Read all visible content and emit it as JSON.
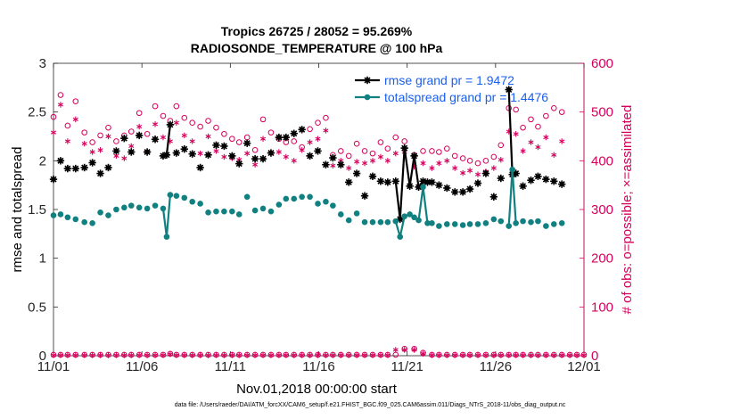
{
  "chart_data": {
    "type": "line",
    "title": "Tropics 26725 / 28052 = 95.269%",
    "subtitle": "RADIOSONDE_TEMPERATURE @ 100 hPa",
    "xlabel": "Nov.01,2018 00:00:00 start",
    "ylabel": "rmse and totalspread",
    "y2label": "# of obs: o=possible; ×=assimilated",
    "xlim": [
      0,
      30
    ],
    "ylim": [
      0,
      3
    ],
    "y2lim": [
      0,
      600
    ],
    "x_ticks": [
      0,
      5,
      10,
      15,
      20,
      25,
      30
    ],
    "x_tick_labels": [
      "11/01",
      "11/06",
      "11/11",
      "11/16",
      "11/21",
      "11/26",
      "12/01"
    ],
    "y_ticks": [
      0,
      0.5,
      1,
      1.5,
      2,
      2.5,
      3
    ],
    "y_tick_labels": [
      "0",
      "0.5",
      "1",
      "1.5",
      "2",
      "2.5",
      "3"
    ],
    "y2_ticks": [
      0,
      100,
      200,
      300,
      400,
      500,
      600
    ],
    "y2_tick_labels": [
      "0",
      "100",
      "200",
      "300",
      "400",
      "500",
      "600"
    ],
    "colors": {
      "rmse": "#000000",
      "spread": "#118080",
      "obs": "#d6005c"
    },
    "legend": [
      {
        "name": "rmse grand pr = 1.9472",
        "color": "#000000"
      },
      {
        "name": "totalspread grand pr = 1.4476",
        "color": "#118080"
      }
    ],
    "series": [
      {
        "name": "rmse",
        "axis": "left",
        "color": "#000000",
        "x": [
          0.0,
          0.4,
          0.8,
          1.25,
          1.75,
          2.2,
          2.65,
          3.1,
          3.55,
          4.0,
          4.4,
          4.85,
          5.3,
          5.75,
          6.2,
          6.4,
          6.6,
          6.95,
          7.4,
          7.85,
          8.3,
          8.75,
          9.2,
          9.65,
          10.1,
          10.5,
          10.95,
          11.4,
          11.85,
          12.3,
          12.75,
          13.15,
          13.6,
          14.05,
          14.5,
          14.95,
          15.4,
          15.8,
          16.25,
          16.7,
          17.15,
          17.6,
          18.05,
          18.5,
          18.9,
          19.35,
          19.6,
          19.85,
          20.15,
          20.4,
          20.65,
          20.9,
          21.15,
          21.4,
          21.8,
          22.25,
          22.7,
          23.15,
          23.55,
          24.0,
          24.45,
          24.9,
          25.3,
          25.75,
          25.95,
          26.15,
          26.55,
          27.0,
          27.4,
          27.85,
          28.3,
          28.75
        ],
        "y": [
          1.81,
          2.0,
          1.92,
          1.92,
          1.93,
          1.98,
          1.87,
          1.93,
          2.1,
          2.23,
          2.09,
          2.26,
          2.09,
          2.22,
          2.05,
          2.06,
          2.37,
          2.08,
          2.12,
          2.07,
          1.93,
          2.06,
          2.16,
          2.15,
          2.05,
          1.97,
          2.18,
          2.02,
          2.02,
          2.08,
          2.24,
          2.24,
          2.28,
          2.32,
          2.05,
          2.1,
          1.96,
          2.03,
          1.96,
          1.78,
          1.87,
          1.64,
          1.84,
          1.79,
          1.78,
          1.79,
          1.4,
          2.13,
          1.74,
          2.05,
          1.73,
          1.79,
          1.78,
          1.78,
          1.75,
          1.72,
          1.68,
          1.68,
          1.71,
          1.77,
          1.87,
          1.63,
          1.82,
          2.73,
          1.86,
          1.87,
          1.74,
          1.8,
          1.84,
          1.81,
          1.79,
          1.76
        ]
      },
      {
        "name": "totalspread",
        "axis": "left",
        "color": "#118080",
        "x": [
          0.0,
          0.4,
          0.8,
          1.25,
          1.75,
          2.2,
          2.65,
          3.1,
          3.55,
          4.0,
          4.4,
          4.85,
          5.3,
          5.75,
          6.2,
          6.4,
          6.6,
          6.95,
          7.4,
          7.85,
          8.3,
          8.75,
          9.2,
          9.65,
          10.1,
          10.5,
          10.95,
          11.4,
          11.85,
          12.3,
          12.75,
          13.15,
          13.6,
          14.05,
          14.5,
          14.95,
          15.4,
          15.8,
          16.25,
          16.7,
          17.15,
          17.6,
          18.05,
          18.5,
          18.9,
          19.35,
          19.6,
          19.85,
          20.15,
          20.4,
          20.65,
          20.9,
          21.15,
          21.4,
          21.8,
          22.25,
          22.7,
          23.15,
          23.55,
          24.0,
          24.45,
          24.9,
          25.3,
          25.75,
          25.95,
          26.15,
          26.55,
          27.0,
          27.4,
          27.85,
          28.3,
          28.75
        ],
        "y": [
          1.44,
          1.45,
          1.42,
          1.4,
          1.37,
          1.36,
          1.47,
          1.44,
          1.5,
          1.52,
          1.54,
          1.52,
          1.51,
          1.54,
          1.51,
          1.22,
          1.65,
          1.64,
          1.62,
          1.58,
          1.56,
          1.47,
          1.48,
          1.48,
          1.48,
          1.45,
          1.63,
          1.49,
          1.51,
          1.48,
          1.55,
          1.61,
          1.61,
          1.63,
          1.63,
          1.56,
          1.58,
          1.54,
          1.45,
          1.39,
          1.46,
          1.37,
          1.37,
          1.37,
          1.37,
          1.38,
          1.22,
          1.43,
          1.45,
          1.42,
          1.39,
          1.73,
          1.36,
          1.36,
          1.33,
          1.35,
          1.35,
          1.34,
          1.35,
          1.35,
          1.36,
          1.4,
          1.38,
          1.33,
          1.91,
          1.36,
          1.38,
          1.37,
          1.38,
          1.33,
          1.35,
          1.36
        ]
      },
      {
        "name": "possible",
        "axis": "right",
        "color": "#d6005c",
        "marker": "o",
        "x": [
          0.0,
          0.4,
          0.8,
          1.25,
          1.75,
          2.2,
          2.65,
          3.1,
          3.55,
          4.0,
          4.4,
          4.85,
          5.3,
          5.75,
          6.2,
          6.6,
          6.95,
          7.4,
          7.85,
          8.3,
          8.75,
          9.2,
          9.65,
          10.1,
          10.5,
          10.95,
          11.4,
          11.85,
          12.3,
          12.75,
          13.15,
          13.6,
          14.05,
          14.5,
          14.95,
          15.4,
          15.8,
          16.25,
          16.7,
          17.15,
          17.6,
          18.05,
          18.5,
          18.9,
          19.35,
          19.85,
          20.4,
          20.9,
          21.4,
          21.8,
          22.25,
          22.7,
          23.15,
          23.55,
          24.0,
          24.45,
          24.9,
          25.3,
          25.75,
          26.15,
          26.55,
          27.0,
          27.4,
          27.85,
          28.3,
          28.75
        ],
        "y": [
          490,
          535,
          472,
          522,
          458,
          438,
          452,
          468,
          440,
          452,
          460,
          498,
          455,
          512,
          492,
          482,
          512,
          488,
          478,
          470,
          482,
          468,
          455,
          445,
          438,
          448,
          422,
          485,
          458,
          445,
          438,
          440,
          428,
          465,
          478,
          488,
          412,
          420,
          410,
          435,
          420,
          415,
          438,
          425,
          448,
          440,
          412,
          420,
          420,
          418,
          425,
          410,
          405,
          400,
          395,
          400,
          408,
          432,
          508,
          505,
          468,
          485,
          470,
          492,
          508,
          500
        ]
      },
      {
        "name": "assimilated",
        "axis": "right",
        "color": "#d6005c",
        "marker": "*",
        "x": [
          0.0,
          0.4,
          0.8,
          1.25,
          1.75,
          2.2,
          2.65,
          3.1,
          3.55,
          4.0,
          4.4,
          4.85,
          5.3,
          5.75,
          6.2,
          6.6,
          6.95,
          7.4,
          7.85,
          8.3,
          8.75,
          9.2,
          9.65,
          10.1,
          10.5,
          10.95,
          11.4,
          11.85,
          12.3,
          12.75,
          13.15,
          13.6,
          14.05,
          14.5,
          14.95,
          15.4,
          15.8,
          16.25,
          16.7,
          17.15,
          17.6,
          18.05,
          18.5,
          18.9,
          19.35,
          19.85,
          20.4,
          20.9,
          21.4,
          21.8,
          22.25,
          22.7,
          23.15,
          23.55,
          24.0,
          24.45,
          24.9,
          25.3,
          25.75,
          26.15,
          26.55,
          27.0,
          27.4,
          27.85,
          28.3,
          28.75
        ],
        "y": [
          458,
          515,
          440,
          485,
          435,
          418,
          422,
          450,
          410,
          405,
          430,
          470,
          418,
          475,
          448,
          440,
          478,
          452,
          440,
          415,
          450,
          420,
          408,
          405,
          402,
          415,
          392,
          445,
          415,
          418,
          408,
          400,
          422,
          438,
          445,
          462,
          390,
          400,
          385,
          398,
          395,
          400,
          408,
          400,
          415,
          418,
          388,
          395,
          385,
          395,
          400,
          385,
          375,
          380,
          372,
          378,
          385,
          402,
          460,
          455,
          420,
          438,
          428,
          448,
          412,
          440
        ]
      },
      {
        "name": "possible-low",
        "axis": "right",
        "color": "#d6005c",
        "marker": "o",
        "x": [
          0,
          0.4,
          0.8,
          1.25,
          1.75,
          2.2,
          2.65,
          3.1,
          3.55,
          4.0,
          4.4,
          4.85,
          5.3,
          5.75,
          6.2,
          6.6,
          6.95,
          7.4,
          7.85,
          8.3,
          8.75,
          9.2,
          9.65,
          10.1,
          10.5,
          10.95,
          11.4,
          11.85,
          12.3,
          12.75,
          13.15,
          13.6,
          14.05,
          14.5,
          14.95,
          15.4,
          15.8,
          16.25,
          16.7,
          17.15,
          17.6,
          18.05,
          18.5,
          18.9,
          19.35,
          19.85,
          20.4,
          20.9,
          21.4,
          21.8,
          22.25,
          22.7,
          23.15,
          23.55,
          24.0,
          24.45,
          24.9,
          25.3,
          25.75,
          26.15,
          26.55,
          27.0,
          27.4,
          27.85,
          28.3,
          28.75,
          29.2,
          29.6,
          30.0
        ],
        "y": [
          2,
          2,
          2,
          2,
          2,
          2,
          2,
          2,
          2,
          2,
          2,
          2,
          2,
          2,
          2,
          4,
          2,
          2,
          2,
          2,
          2,
          2,
          2,
          2,
          2,
          2,
          2,
          2,
          2,
          2,
          2,
          2,
          2,
          2,
          2,
          2,
          2,
          2,
          2,
          2,
          2,
          2,
          2,
          2,
          2,
          14,
          14,
          6,
          2,
          2,
          2,
          2,
          2,
          2,
          2,
          2,
          2,
          2,
          2,
          2,
          2,
          2,
          2,
          2,
          2,
          2,
          2,
          2,
          2
        ]
      },
      {
        "name": "assimilated-low",
        "axis": "right",
        "color": "#d6005c",
        "marker": "*",
        "x": [
          0,
          0.4,
          0.8,
          1.25,
          1.75,
          2.2,
          2.65,
          3.1,
          3.55,
          4.0,
          4.4,
          4.85,
          5.3,
          5.75,
          6.2,
          6.6,
          6.95,
          7.4,
          7.85,
          8.3,
          8.75,
          9.2,
          9.65,
          10.1,
          10.5,
          10.95,
          11.4,
          11.85,
          12.3,
          12.75,
          13.15,
          13.6,
          14.05,
          14.5,
          14.95,
          15.4,
          15.8,
          16.25,
          16.7,
          17.15,
          17.6,
          18.05,
          18.5,
          18.9,
          19.35,
          19.85,
          20.4,
          20.9,
          21.4,
          21.8,
          22.25,
          22.7,
          23.15,
          23.55,
          24.0,
          24.45,
          24.9,
          25.3,
          25.75,
          26.15,
          26.55,
          27.0,
          27.4,
          27.85,
          28.3,
          28.75,
          29.2,
          29.6,
          30.0
        ],
        "y": [
          1,
          1,
          1,
          1,
          1,
          1,
          1,
          1,
          1,
          1,
          1,
          1,
          1,
          1,
          1,
          3,
          1,
          1,
          1,
          1,
          1,
          1,
          1,
          1,
          1,
          1,
          1,
          1,
          1,
          1,
          1,
          1,
          1,
          1,
          1,
          1,
          1,
          1,
          1,
          1,
          1,
          1,
          1,
          1,
          12,
          12,
          12,
          4,
          1,
          1,
          1,
          1,
          1,
          1,
          1,
          1,
          1,
          1,
          1,
          1,
          1,
          1,
          1,
          1,
          1,
          1,
          1,
          1,
          1
        ]
      }
    ]
  },
  "footer": {
    "text": "data file: /Users/raeder/DAI/ATM_forcXX/CAM6_setup/f.e21.FHIST_BGC.f09_025.CAM6assim.011/Diags_NTrS_2018-11/obs_diag_output.nc"
  }
}
